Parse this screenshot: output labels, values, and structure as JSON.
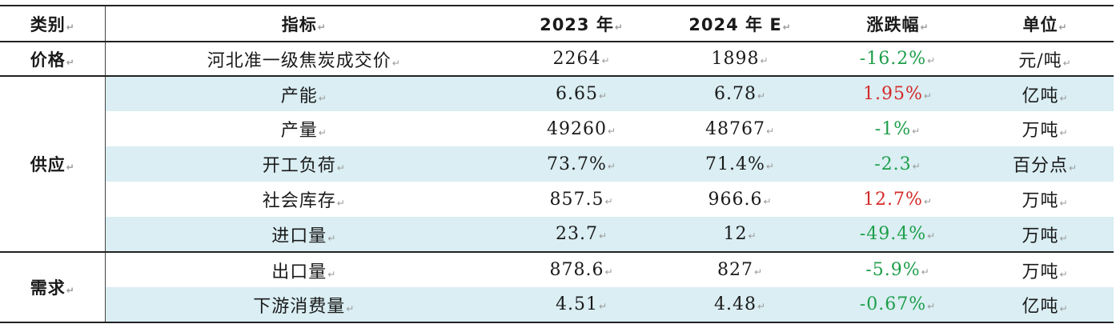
{
  "mark": "↵",
  "header": {
    "category": "类别",
    "indicator": "指标",
    "y2023": "2023 年",
    "y2024": "2024 年 E",
    "change": "涨跌幅",
    "unit": "单位"
  },
  "colors": {
    "negative": "#1e9e4a",
    "positive": "#d42a2a",
    "row_shade": "#daeef3"
  },
  "groups": [
    {
      "category": "价格",
      "rows": [
        {
          "indicator": "河北准一级焦炭成交价",
          "y2023": "2264",
          "y2024": "1898",
          "change": "-16.2%",
          "direction": "down",
          "unit": "元/吨"
        }
      ]
    },
    {
      "category": "供应",
      "rows": [
        {
          "indicator": "产能",
          "y2023": "6.65",
          "y2024": "6.78",
          "change": "1.95%",
          "direction": "up",
          "unit": "亿吨"
        },
        {
          "indicator": "产量",
          "y2023": "49260",
          "y2024": "48767",
          "change": "-1%",
          "direction": "down",
          "unit": "万吨"
        },
        {
          "indicator": "开工负荷",
          "y2023": "73.7%",
          "y2024": "71.4%",
          "change": "-2.3",
          "direction": "down",
          "unit": "百分点"
        },
        {
          "indicator": "社会库存",
          "y2023": "857.5",
          "y2024": "966.6",
          "change": "12.7%",
          "direction": "up",
          "unit": "万吨"
        },
        {
          "indicator": "进口量",
          "y2023": "23.7",
          "y2024": "12",
          "change": "-49.4%",
          "direction": "down",
          "unit": "万吨"
        }
      ]
    },
    {
      "category": "需求",
      "rows": [
        {
          "indicator": "出口量",
          "y2023": "878.6",
          "y2024": "827",
          "change": "-5.9%",
          "direction": "down",
          "unit": "万吨"
        },
        {
          "indicator": "下游消费量",
          "y2023": "4.51",
          "y2024": "4.48",
          "change": "-0.67%",
          "direction": "down",
          "unit": "亿吨"
        }
      ]
    }
  ]
}
